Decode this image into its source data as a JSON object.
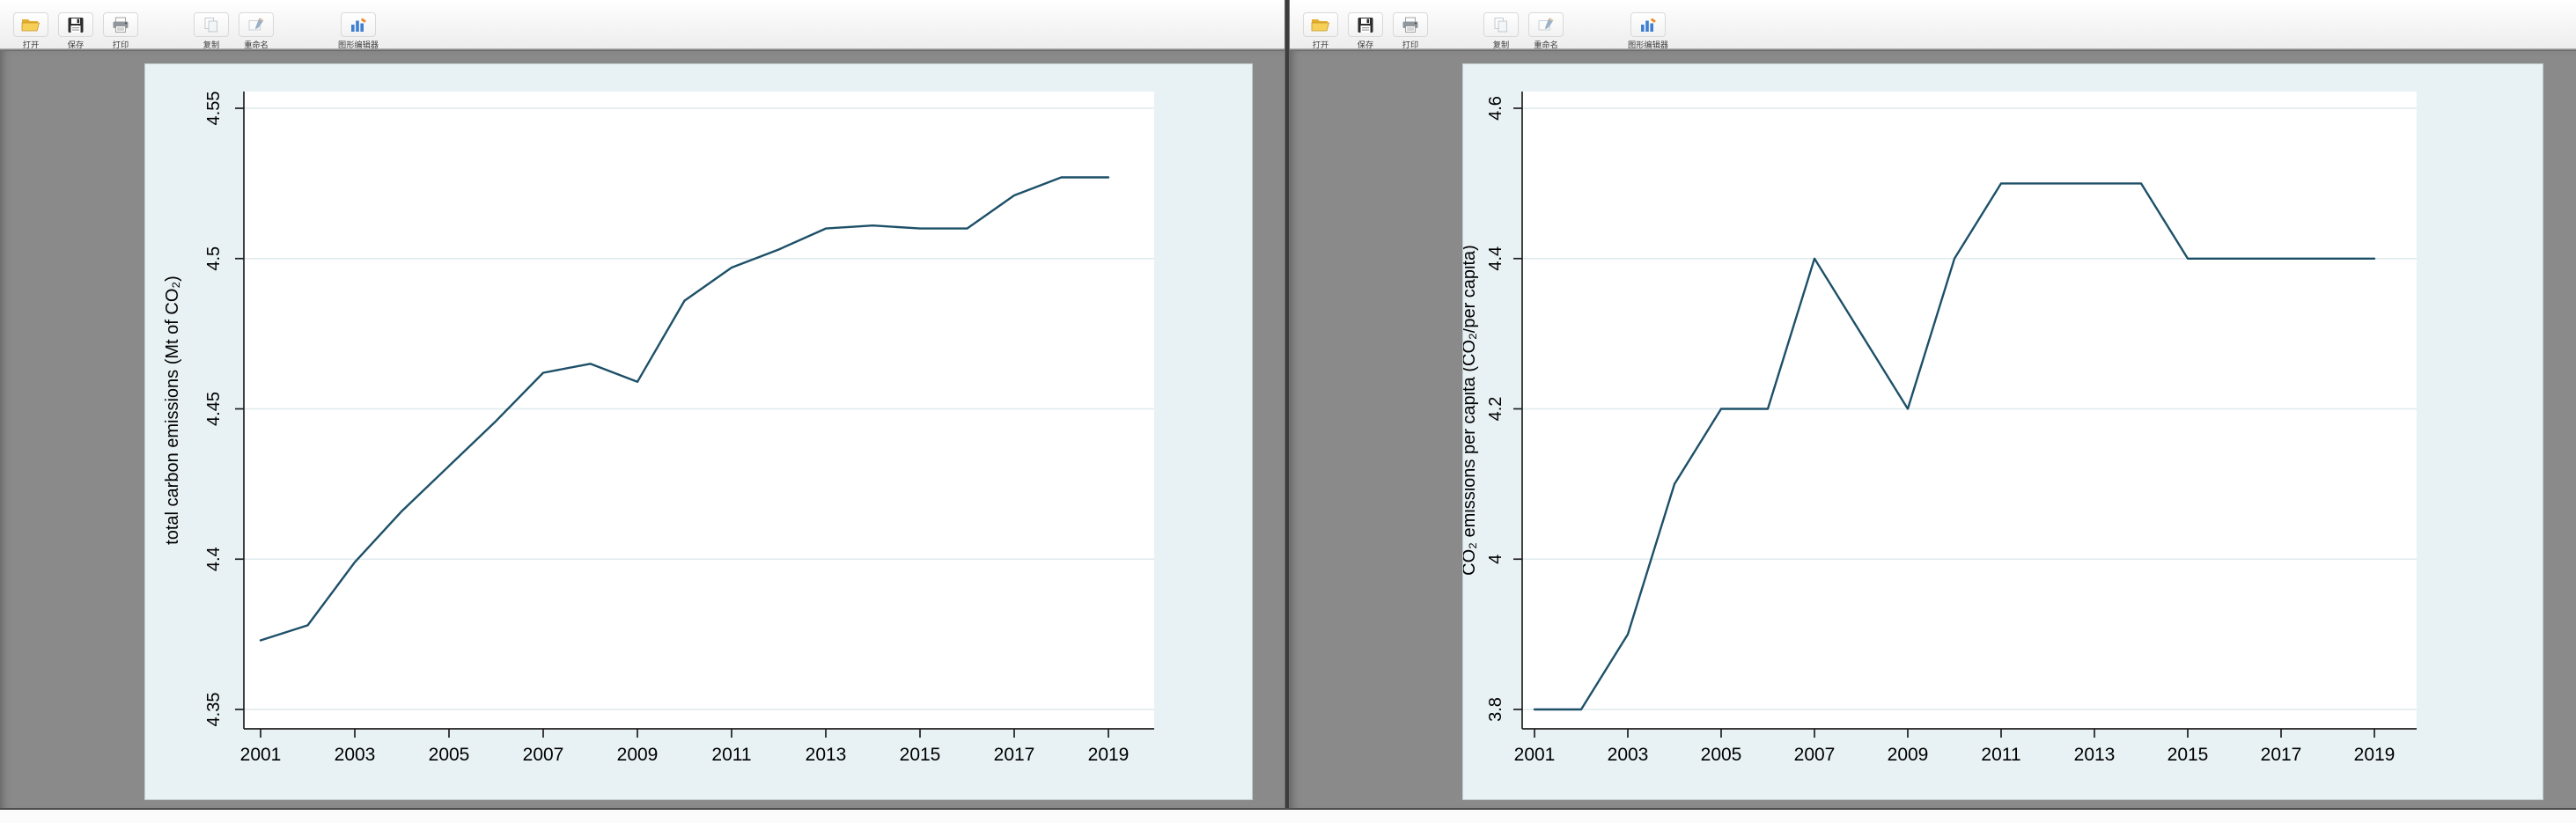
{
  "windows": [
    {
      "name": "total-emissions-graph-window",
      "toolbar": {
        "buttons": [
          {
            "label": "打开",
            "icon": "folder-open-icon",
            "enabled": true
          },
          {
            "label": "保存",
            "icon": "save-icon",
            "enabled": true
          },
          {
            "label": "打印",
            "icon": "print-icon",
            "enabled": true
          },
          {
            "label": "复制",
            "icon": "copy-icon",
            "enabled": false
          },
          {
            "label": "重命名",
            "icon": "rename-icon",
            "enabled": false
          },
          {
            "label": "图形编辑器",
            "icon": "graph-editor-icon",
            "enabled": true
          }
        ]
      },
      "chart_index": 0
    },
    {
      "name": "per-capita-emissions-graph-window",
      "toolbar": {
        "buttons": [
          {
            "label": "打开",
            "icon": "folder-open-icon",
            "enabled": true
          },
          {
            "label": "保存",
            "icon": "save-icon",
            "enabled": true
          },
          {
            "label": "打印",
            "icon": "print-icon",
            "enabled": true
          },
          {
            "label": "复制",
            "icon": "copy-icon",
            "enabled": false
          },
          {
            "label": "重命名",
            "icon": "rename-icon",
            "enabled": false
          },
          {
            "label": "图形编辑器",
            "icon": "graph-editor-icon",
            "enabled": true
          }
        ]
      },
      "chart_index": 1
    }
  ],
  "chart_data": [
    {
      "type": "line",
      "series_name": "total-emissions-line",
      "title": "",
      "xlabel": "",
      "ylabel": "total carbon emissions (Mt of CO₂)",
      "x": [
        2001,
        2002,
        2003,
        2004,
        2005,
        2006,
        2007,
        2008,
        2009,
        2010,
        2011,
        2012,
        2013,
        2014,
        2015,
        2016,
        2017,
        2018,
        2019
      ],
      "values": [
        4.373,
        4.378,
        4.399,
        4.416,
        4.431,
        4.446,
        4.462,
        4.465,
        4.459,
        4.486,
        4.497,
        4.503,
        4.51,
        4.511,
        4.51,
        4.51,
        4.521,
        4.527,
        4.527
      ],
      "y_ticks": [
        4.55,
        4.5,
        4.45,
        4.4,
        4.35
      ],
      "y_tick_labels": [
        "4.55",
        "4.5",
        "4.45",
        "4.4",
        "4.35"
      ],
      "x_tick_labels": [
        2001,
        2003,
        2005,
        2007,
        2009,
        2011,
        2013,
        2015,
        2017,
        2019
      ],
      "xlim": [
        2001,
        2019
      ],
      "ylim": [
        4.344,
        4.556
      ],
      "grid": true,
      "legend": "none",
      "line_color": "#1d5068",
      "plot_bg": "#ffffff",
      "panel_bg": "#e8f1f3",
      "grid_color": "#dfeaec",
      "axis_color": "#1f1f1f"
    },
    {
      "type": "line",
      "series_name": "co2-per-capita-line",
      "title": "",
      "xlabel": "",
      "ylabel": "CO₂ emissions per capita (CO₂/per capita)",
      "x": [
        2001,
        2002,
        2003,
        2004,
        2005,
        2006,
        2007,
        2008,
        2009,
        2010,
        2011,
        2012,
        2013,
        2014,
        2015,
        2016,
        2017,
        2018,
        2019
      ],
      "values": [
        3.8,
        3.8,
        3.9,
        4.1,
        4.2,
        4.2,
        4.4,
        4.3,
        4.2,
        4.4,
        4.5,
        4.5,
        4.5,
        4.5,
        4.4,
        4.4,
        4.4,
        4.4,
        4.4
      ],
      "y_ticks": [
        4.6,
        4.4,
        4.2,
        4.0,
        3.8
      ],
      "y_tick_labels": [
        "4.6",
        "4.4",
        "4.2",
        "4",
        "3.8"
      ],
      "x_tick_labels": [
        2001,
        2003,
        2005,
        2007,
        2009,
        2011,
        2013,
        2015,
        2017,
        2019
      ],
      "xlim": [
        2001,
        2019
      ],
      "ylim": [
        3.774,
        4.622
      ],
      "grid": true,
      "legend": "none",
      "line_color": "#1d5068",
      "plot_bg": "#ffffff",
      "panel_bg": "#e8f1f3",
      "grid_color": "#dfeaec",
      "axis_color": "#1f1f1f"
    }
  ]
}
